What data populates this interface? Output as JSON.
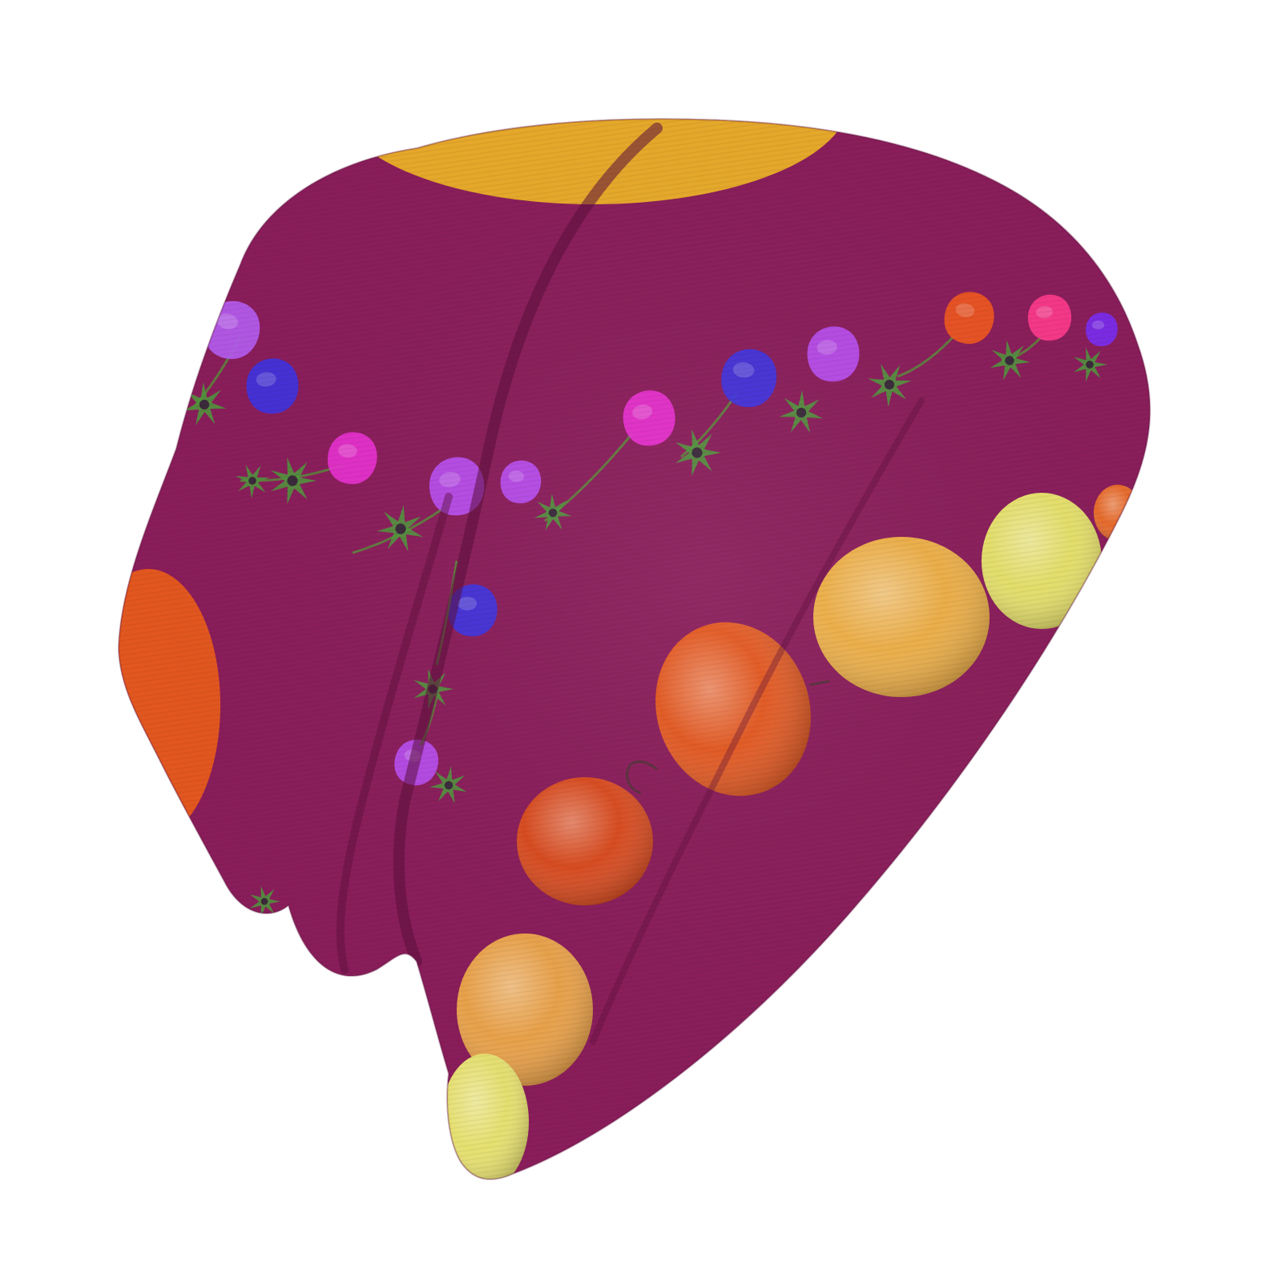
{
  "product": {
    "name": "beanie-hat",
    "colors": {
      "background": "#ffffff",
      "fabric": "#8a1d5b",
      "fabric_shadow": "#6e1547",
      "fabric_highlight": "#9c2a6b",
      "fold": "#5a0f3a",
      "rib": "#7a1850",
      "stem": "#5b8a3a",
      "leaf": "#4f9a3c"
    },
    "flower_colors": [
      "#b45cf0",
      "#3f33e0",
      "#e830d0",
      "#b94ef0",
      "#f0571e",
      "#ff3a8c",
      "#7a2cf0"
    ],
    "fruit_colors": [
      "#e7a92a",
      "#e3571f",
      "#d94a1e",
      "#edae46",
      "#e6e06a",
      "#eaa24a",
      "#e6e070",
      "#e86a2a"
    ]
  }
}
